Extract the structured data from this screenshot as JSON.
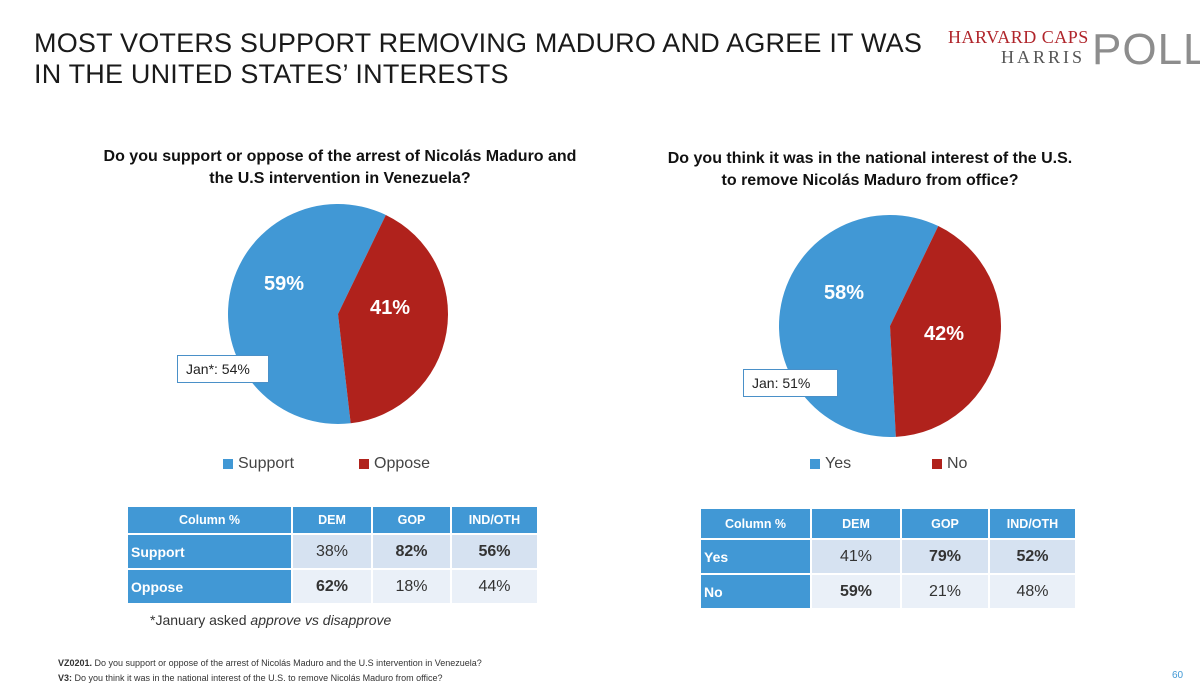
{
  "title": "MOST VOTERS SUPPORT REMOVING MADURO AND AGREE IT WAS IN THE UNITED STATES’ INTERESTS",
  "logo": {
    "top": "HARVARD CAPS",
    "bottom": "HARRIS",
    "poll": "POLL"
  },
  "colors": {
    "blue": "#4198d5",
    "red": "#b0221c"
  },
  "chart_data": [
    {
      "type": "pie",
      "title": "Do you support or oppose of the arrest of Nicolás Maduro and the U.S intervention in Venezuela?",
      "categories": [
        "Support",
        "Oppose"
      ],
      "values": [
        59,
        41
      ],
      "labels": [
        "59%",
        "41%"
      ],
      "colors": [
        "#4198d5",
        "#b0221c"
      ],
      "annotation": "Jan*: 54%",
      "table": {
        "header": [
          "Column %",
          "DEM",
          "GOP",
          "IND/OTH"
        ],
        "rows": [
          {
            "label": "Support",
            "values": [
              "38%",
              "82%",
              "56%"
            ]
          },
          {
            "label": "Oppose",
            "values": [
              "62%",
              "18%",
              "44%"
            ]
          }
        ]
      }
    },
    {
      "type": "pie",
      "title": "Do you think it was in the national interest of the U.S. to remove Nicolás Maduro from office?",
      "categories": [
        "Yes",
        "No"
      ],
      "values": [
        58,
        42
      ],
      "labels": [
        "58%",
        "42%"
      ],
      "colors": [
        "#4198d5",
        "#b0221c"
      ],
      "annotation": "Jan: 51%",
      "table": {
        "header": [
          "Column %",
          "DEM",
          "GOP",
          "IND/OTH"
        ],
        "rows": [
          {
            "label": "Yes",
            "values": [
              "41%",
              "79%",
              "52%"
            ]
          },
          {
            "label": "No",
            "values": [
              "59%",
              "21%",
              "48%"
            ]
          }
        ]
      }
    }
  ],
  "footnote": {
    "prefix": "*January asked ",
    "italic": "approve vs disapprove"
  },
  "sources": [
    {
      "code": "VZ0201.",
      "text": " Do you support or oppose of the arrest of Nicolás Maduro and the U.S intervention in Venezuela?"
    },
    {
      "code": "V3:",
      "text": " Do you think it was in the national interest of the U.S. to remove Nicolás Maduro from office?"
    }
  ],
  "page_number": "60"
}
